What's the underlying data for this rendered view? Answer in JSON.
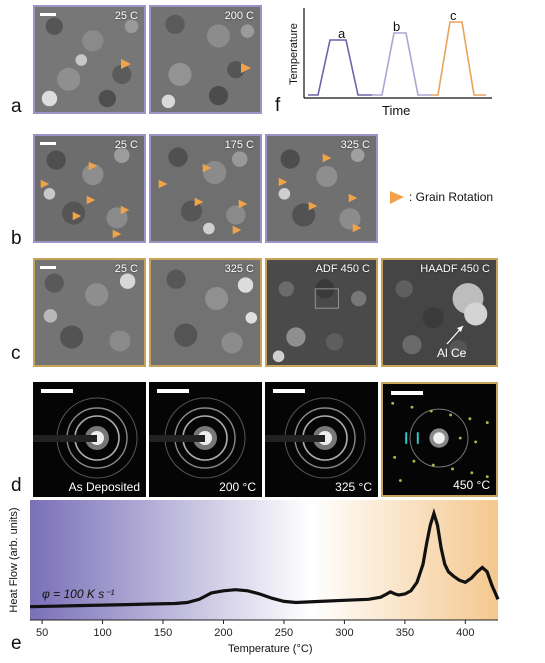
{
  "panel_labels": {
    "a": "a",
    "b": "b",
    "c": "c",
    "d": "d",
    "e": "e",
    "f": "f"
  },
  "row_a": {
    "images": [
      {
        "temp": "25 C"
      },
      {
        "temp": "200 C"
      }
    ]
  },
  "row_b": {
    "images": [
      {
        "temp": "25 C"
      },
      {
        "temp": "175 C"
      },
      {
        "temp": "325 C"
      }
    ]
  },
  "row_c": {
    "images": [
      {
        "temp": "25 C"
      },
      {
        "temp": "325 C"
      },
      {
        "temp": "ADF 450 C"
      },
      {
        "temp": "HAADF 450 C"
      }
    ],
    "annotation": "Al Ce"
  },
  "row_d": {
    "images": [
      {
        "label": "As Deposited"
      },
      {
        "label": "200 °C"
      },
      {
        "label": "325 °C"
      },
      {
        "label": "450 °C"
      }
    ]
  },
  "legend": {
    "text": ": Grain Rotation",
    "arrow_color": "#f2a347"
  },
  "profile": {
    "ylabel": "Temperature",
    "xlabel": "Time",
    "peaks": [
      "a",
      "b",
      "c"
    ],
    "colors": [
      "#6b64a8",
      "#aaa6d6",
      "#e8a35a"
    ]
  },
  "chart_data": {
    "type": "line",
    "title": "",
    "xlabel": "Temperature (°C)",
    "ylabel": "Heat Flow (arb. units)",
    "annotation": "φ = 100 K s⁻¹",
    "xlim": [
      40,
      427
    ],
    "ylim": [
      0,
      1
    ],
    "x_ticks": [
      50,
      100,
      150,
      200,
      250,
      300,
      350,
      400
    ],
    "grid": false,
    "background_gradient": [
      "#7a70b8",
      "#ffffff",
      "#f4c88e"
    ],
    "series": [
      {
        "x": [
          40,
          60,
          80,
          100,
          120,
          140,
          160,
          170,
          180,
          185,
          190,
          200,
          210,
          220,
          230,
          240,
          250,
          260,
          280,
          300,
          320,
          330,
          335,
          338,
          342,
          345,
          350,
          355,
          360,
          365,
          368,
          371,
          374,
          377,
          380,
          383,
          386,
          390,
          395,
          400,
          405,
          410,
          414,
          418,
          422,
          427
        ],
        "y": [
          0.05,
          0.055,
          0.06,
          0.065,
          0.07,
          0.075,
          0.08,
          0.09,
          0.12,
          0.15,
          0.18,
          0.2,
          0.21,
          0.2,
          0.17,
          0.13,
          0.1,
          0.09,
          0.1,
          0.11,
          0.12,
          0.14,
          0.17,
          0.19,
          0.17,
          0.16,
          0.17,
          0.2,
          0.28,
          0.45,
          0.65,
          0.82,
          0.93,
          0.82,
          0.6,
          0.45,
          0.38,
          0.34,
          0.3,
          0.28,
          0.32,
          0.38,
          0.42,
          0.38,
          0.25,
          0.12
        ]
      }
    ]
  }
}
